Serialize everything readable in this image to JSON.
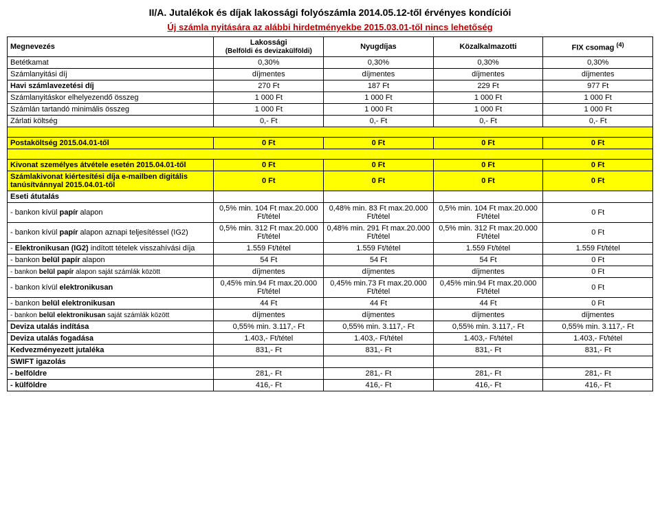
{
  "title": "II/A. Jutalékok és díjak lakossági folyószámla 2014.05.12-től érvényes kondíciói",
  "subtitle": "Új számla nyitására az alábbi hirdetményekbe 2015.03.01-től nincs lehetőség",
  "headers": {
    "megnevezes": "Megnevezés",
    "lakossagi": "Lakossági",
    "lakossagi_sub": "(Belföldi és devizakülföldi)",
    "nyugdijas": "Nyugdíjas",
    "kozalkalmazotti": "Közalkalmazotti",
    "fix": "FIX csomag",
    "fix_sup": "(4)"
  },
  "rows": [
    {
      "label": "Betétkamat",
      "c": [
        "0,30%",
        "0,30%",
        "0,30%",
        "0,30%"
      ]
    },
    {
      "label": "Számlanyitási díj",
      "c": [
        "díjmentes",
        "díjmentes",
        "díjmentes",
        "díjmentes"
      ]
    },
    {
      "label": "Havi számlavezetési díj",
      "bold": true,
      "c": [
        "270 Ft",
        "187 Ft",
        "229 Ft",
        "977 Ft"
      ]
    },
    {
      "label": "Számlanyitáskor elhelyezendő összeg",
      "c": [
        "1 000 Ft",
        "1 000 Ft",
        "1 000 Ft",
        "1 000 Ft"
      ]
    },
    {
      "label": "Számlán tartandó minimális összeg",
      "c": [
        "1 000 Ft",
        "1 000 Ft",
        "1 000 Ft",
        "1 000 Ft"
      ]
    },
    {
      "label": "Zárlati költség",
      "c": [
        "0,- Ft",
        "0,- Ft",
        "0,- Ft",
        "0,- Ft"
      ]
    }
  ],
  "postakoltseg": {
    "label": "Postaköltség 2015.04.01-től",
    "c": [
      "0 Ft",
      "0 Ft",
      "0 Ft",
      "0 Ft"
    ]
  },
  "kivonat": {
    "label": "Kivonat személyes átvétele esetén 2015.04.01-től",
    "c": [
      "0 Ft",
      "0 Ft",
      "0 Ft",
      "0 Ft"
    ]
  },
  "szamlakivonat": {
    "label": "Számlakivonat kiértesítési díja e-mailben digitális tanúsítvánnyal 2015.04.01-től",
    "c": [
      "0 Ft",
      "0 Ft",
      "0 Ft",
      "0 Ft"
    ]
  },
  "eseti_label": "Eseti átutalás",
  "eseti": [
    {
      "label": " - bankon kívül papír alapon",
      "boldpart": "papír",
      "c": [
        "0,5% min. 104 Ft max.20.000 Ft/tétel",
        "0,48% min. 83 Ft max.20.000 Ft/tétel",
        "0,5% min. 104 Ft max.20.000 Ft/tétel",
        "0 Ft"
      ]
    },
    {
      "label": " - bankon kívül papír alapon aznapi teljesítéssel (IG2)",
      "boldpart": "papír",
      "c": [
        "0,5% min. 312 Ft max.20.000 Ft/tétel",
        "0,48% min. 291 Ft max.20.000 Ft/tétel",
        "0,5% min. 312 Ft max.20.000 Ft/tétel",
        "0 Ft"
      ]
    },
    {
      "label": " - Elektronikusan (IG2) indított tételek visszahívási díja",
      "boldpart": "Elektronikusan (IG2)",
      "c": [
        "1.559 Ft/tétel",
        "1.559 Ft/tétel",
        "1.559 Ft/tétel",
        "1.559 Ft/tétel"
      ]
    },
    {
      "label": " - bankon belül papír alapon",
      "boldpart": "belül papír",
      "c": [
        "54 Ft",
        "54 Ft",
        "54 Ft",
        "0 Ft"
      ]
    },
    {
      "label": " - bankon belül papír alapon saját számlák között",
      "boldpart": "belül papír",
      "smaller": true,
      "c": [
        "díjmentes",
        "díjmentes",
        "díjmentes",
        "0 Ft"
      ]
    },
    {
      "label": " - bankon kívül elektronikusan",
      "boldpart": "elektronikusan",
      "c": [
        "0,45% min.94 Ft max.20.000 Ft/tétel",
        "0,45% min.73 Ft max.20.000 Ft/tétel",
        "0,45% min.94 Ft max.20.000 Ft/tétel",
        "0 Ft"
      ]
    },
    {
      "label": " - bankon belül elektronikusan",
      "boldpart": "belül elektronikusan",
      "c": [
        "44 Ft",
        "44 Ft",
        "44 Ft",
        "0 Ft"
      ]
    },
    {
      "label": " - bankon belül elektronikusan saját számlák között",
      "boldpart": "belül elektronikusan",
      "smaller": true,
      "c": [
        "díjmentes",
        "díjmentes",
        "díjmentes",
        "díjmentes"
      ]
    }
  ],
  "deviza": [
    {
      "label": "Deviza utalás indítása",
      "bold": true,
      "c": [
        "0,55% min. 3.117,- Ft",
        "0,55% min. 3.117,- Ft",
        "0,55% min. 3.117,- Ft",
        "0,55% min. 3.117,- Ft"
      ]
    },
    {
      "label": "Deviza utalás fogadása",
      "bold": true,
      "c": [
        "1.403,- Ft/tétel",
        "1.403,- Ft/tétel",
        "1.403,- Ft/tétel",
        "1.403,- Ft/tétel"
      ]
    },
    {
      "label": "Kedvezményezett jutaléka",
      "bold": true,
      "c": [
        "831,- Ft",
        "831,- Ft",
        "831,- Ft",
        "831,- Ft"
      ]
    }
  ],
  "swift_label": "SWIFT igazolás",
  "swift": [
    {
      "label": "  - belföldre",
      "bold": true,
      "c": [
        "281,- Ft",
        "281,- Ft",
        "281,- Ft",
        "281,- Ft"
      ]
    },
    {
      "label": "  - külföldre",
      "bold": true,
      "c": [
        "416,- Ft",
        "416,- Ft",
        "416,- Ft",
        "416,- Ft"
      ]
    }
  ]
}
